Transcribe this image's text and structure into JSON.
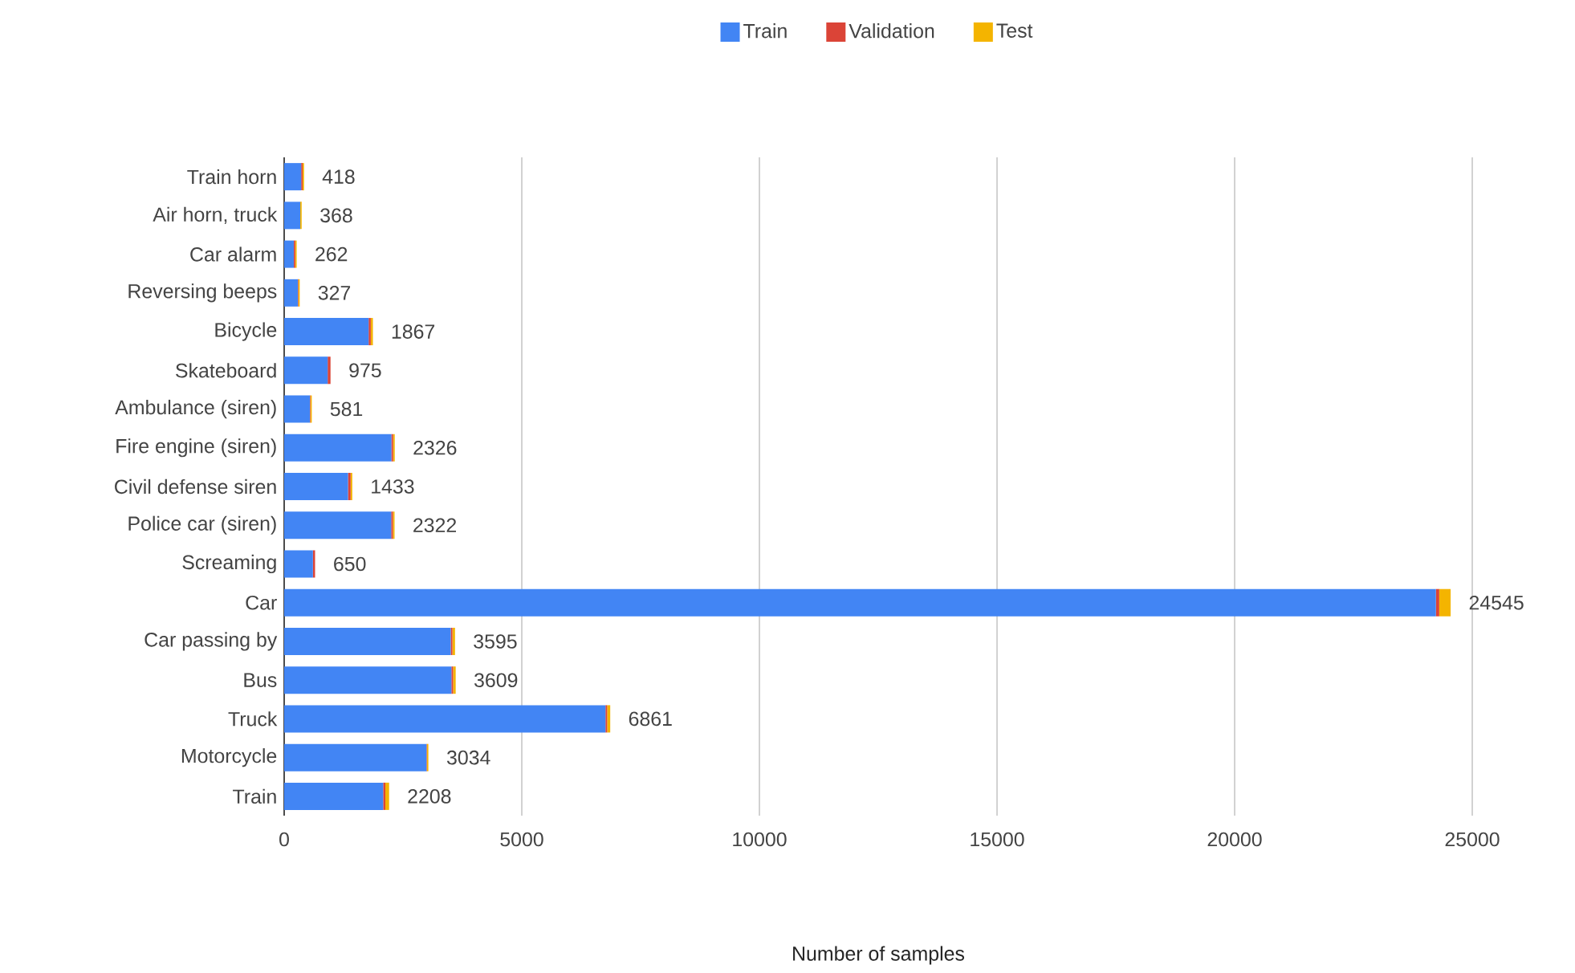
{
  "chart_data": {
    "type": "bar",
    "orientation": "horizontal",
    "stacked": true,
    "categories": [
      "Train horn",
      "Air horn, truck",
      "Car alarm",
      "Reversing beeps",
      "Bicycle",
      "Skateboard",
      "Ambulance (siren)",
      "Fire engine (siren)",
      "Civil defense siren",
      "Police car (siren)",
      "Screaming",
      "Car",
      "Car passing by",
      "Bus",
      "Truck",
      "Motorcycle",
      "Train"
    ],
    "series": [
      {
        "name": "Train",
        "color": "#4285f4",
        "values": [
          358,
          338,
          202,
          287,
          1777,
          915,
          541,
          2256,
          1343,
          2252,
          605,
          24235,
          3505,
          3519,
          6761,
          2994,
          2083
        ]
      },
      {
        "name": "Validation",
        "color": "#db4437",
        "values": [
          30,
          null,
          30,
          10,
          45,
          60,
          10,
          35,
          55,
          35,
          45,
          70,
          35,
          35,
          35,
          10,
          45
        ]
      },
      {
        "name": "Test",
        "color": "#f4b400",
        "values": [
          30,
          30,
          30,
          30,
          45,
          0,
          30,
          35,
          35,
          35,
          0,
          240,
          55,
          55,
          65,
          30,
          80
        ]
      }
    ],
    "totals": [
      "418",
      "368",
      "262",
      "327",
      "1867",
      "975",
      "581",
      "2326",
      "1433",
      "2322",
      "650",
      "24545",
      "3595",
      "3609",
      "6861",
      "3034",
      "2208"
    ],
    "xlim": [
      0,
      25000
    ],
    "xticks": [
      0,
      5000,
      10000,
      15000,
      20000,
      25000
    ],
    "xlabel": "Number of samples",
    "grid": "x",
    "legend": "top"
  }
}
